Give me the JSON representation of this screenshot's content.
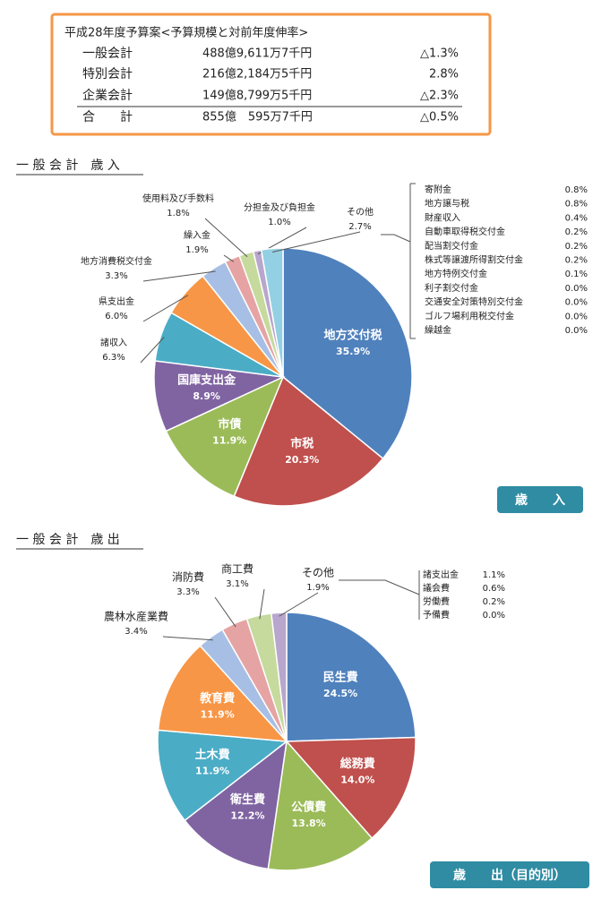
{
  "summary": {
    "title": "平成28年度予算案<予算規模と対前年度伸率>",
    "rows": [
      [
        "一般会計",
        "488億9,611万7千円",
        "△1.3%"
      ],
      [
        "特別会計",
        "216億2,184万5千円",
        "2.8%"
      ],
      [
        "企業会計",
        "149億8,799万5千円",
        "△2.3%"
      ],
      [
        "合　　計",
        "855億　595万7千円",
        "△0.5%"
      ]
    ]
  },
  "chart_data": [
    {
      "type": "pie",
      "title": "一 般 会 計　歳 入",
      "badge": "歳　　入",
      "categories": [
        "地方交付税",
        "市税",
        "市債",
        "国庫支出金",
        "諸収入",
        "県支出金",
        "地方消費税交付金",
        "繰入金",
        "使用料及び手数料",
        "分担金及び負担金",
        "その他"
      ],
      "values": [
        35.9,
        20.3,
        11.9,
        8.9,
        6.3,
        6.0,
        3.3,
        1.9,
        1.8,
        1.0,
        2.7
      ],
      "value_labels": [
        "35.9%",
        "20.3%",
        "11.9%",
        "8.9%",
        "6.3%",
        "6.0%",
        "3.3%",
        "1.9%",
        "1.8%",
        "1.0%",
        "2.7%"
      ],
      "colors": [
        "#4f81bd",
        "#c0504d",
        "#9bbb59",
        "#8064a2",
        "#4bacc6",
        "#f79646",
        "#a7bfe4",
        "#e6a3a3",
        "#c5da9c",
        "#b8a6cc",
        "#93d0e3"
      ],
      "other_breakdown": [
        [
          "寄附金",
          "0.8%"
        ],
        [
          "地方譲与税",
          "0.8%"
        ],
        [
          "財産収入",
          "0.4%"
        ],
        [
          "自動車取得税交付金",
          "0.2%"
        ],
        [
          "配当割交付金",
          "0.2%"
        ],
        [
          "株式等譲渡所得割交付金",
          "0.2%"
        ],
        [
          "地方特例交付金",
          "0.1%"
        ],
        [
          "利子割交付金",
          "0.0%"
        ],
        [
          "交通安全対策特別交付金",
          "0.0%"
        ],
        [
          "ゴルフ場利用税交付金",
          "0.0%"
        ],
        [
          "繰越金",
          "0.0%"
        ]
      ]
    },
    {
      "type": "pie",
      "title": "一 般 会 計　歳 出",
      "badge": "歳　　出（目的別）",
      "categories": [
        "民生費",
        "総務費",
        "公債費",
        "衛生費",
        "土木費",
        "教育費",
        "農林水産業費",
        "消防費",
        "商工費",
        "その他"
      ],
      "values": [
        24.5,
        14.0,
        13.8,
        12.2,
        11.9,
        11.9,
        3.4,
        3.3,
        3.1,
        1.9
      ],
      "value_labels": [
        "24.5%",
        "14.0%",
        "13.8%",
        "12.2%",
        "11.9%",
        "11.9%",
        "3.4%",
        "3.3%",
        "3.1%",
        "1.9%"
      ],
      "colors": [
        "#4f81bd",
        "#c0504d",
        "#9bbb59",
        "#8064a2",
        "#4bacc6",
        "#f79646",
        "#a7bfe4",
        "#e6a3a3",
        "#c5da9c",
        "#b8a6cc"
      ],
      "other_breakdown": [
        [
          "諸支出金",
          "1.1%"
        ],
        [
          "議会費",
          "0.6%"
        ],
        [
          "労働費",
          "0.2%"
        ],
        [
          "予備費",
          "0.0%"
        ]
      ]
    }
  ]
}
